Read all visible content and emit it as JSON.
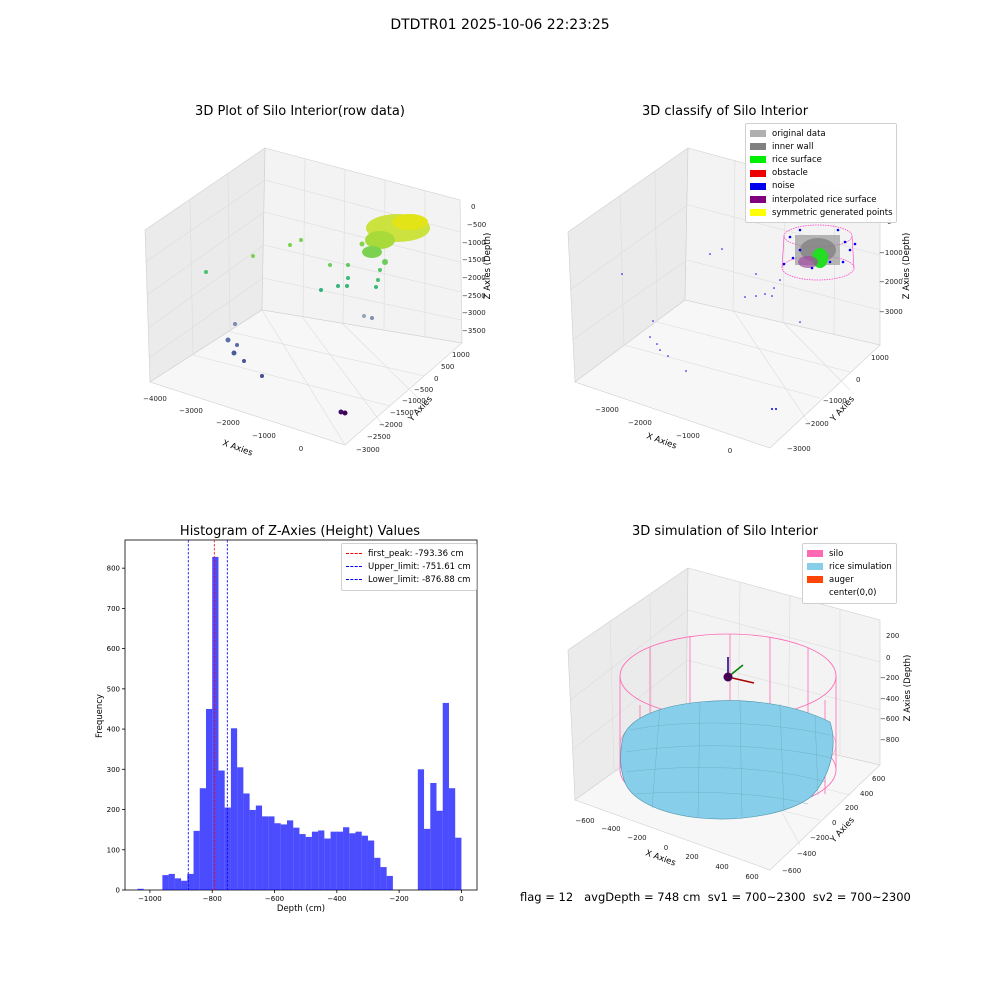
{
  "suptitle": "DTDTR01 2025-10-06 22:23:25",
  "panels": {
    "raw": {
      "title": "3D Plot of Silo Interior(row data)",
      "xlabel": "X Axies",
      "ylabel": "Y Axies",
      "zlabel": "Z Axies (Depth)",
      "xticks": [
        "−4000",
        "−3000",
        "−2000",
        "−1000",
        "0"
      ],
      "yticks": [
        "1000",
        "500",
        "0",
        "−500",
        "−1000",
        "−1500",
        "−2000",
        "−2500",
        "−3000"
      ],
      "zticks": [
        "0",
        "−500",
        "−1000",
        "−1500",
        "−2000",
        "−2500",
        "−3000",
        "−3500"
      ]
    },
    "classify": {
      "title": "3D classify of Silo Interior",
      "xlabel": "X Axies",
      "ylabel": "Y Axies",
      "zlabel": "Z Axies (Depth)",
      "xticks": [
        "−3000",
        "−2000",
        "−1000",
        "0"
      ],
      "yticks": [
        "1000",
        "0",
        "−1000",
        "−2000",
        "−3000"
      ],
      "zticks": [
        "0",
        "−1000",
        "−2000",
        "−3000"
      ],
      "legend": [
        {
          "label": "original data",
          "color": "#b0b0b0"
        },
        {
          "label": "inner wall",
          "color": "#808080"
        },
        {
          "label": "rice surface",
          "color": "#00ee00"
        },
        {
          "label": "obstacle",
          "color": "#ee0000"
        },
        {
          "label": "noise",
          "color": "#0000ee"
        },
        {
          "label": "interpolated rice surface",
          "color": "#800080"
        },
        {
          "label": "symmetric generated points",
          "color": "#ffff00"
        }
      ]
    },
    "simulation": {
      "title": "3D simulation of Silo Interior",
      "xlabel": "X Axies",
      "ylabel": "Y Axies",
      "zlabel": "Z Axies (Depth)",
      "xticks": [
        "−600",
        "−400",
        "−200",
        "0",
        "200",
        "400",
        "600"
      ],
      "yticks": [
        "600",
        "400",
        "200",
        "0",
        "−200",
        "−400",
        "−600"
      ],
      "zticks": [
        "200",
        "0",
        "−200",
        "−400",
        "−600",
        "−800"
      ],
      "legend": [
        {
          "label": "silo",
          "color": "#ff69b4"
        },
        {
          "label": "rice simulation",
          "color": "#87ceeb"
        },
        {
          "label": "auger",
          "color": "#ff4500"
        },
        {
          "label": "center(0,0)",
          "color": ""
        }
      ]
    }
  },
  "status_line": "flag = 12   avgDepth = 748 cm  sv1 = 700~2300  sv2 = 700~2300",
  "chart_data": {
    "type": "bar",
    "title": "Histogram of Z-Axies (Height) Values",
    "xlabel": "Depth (cm)",
    "ylabel": "Frequency",
    "xlim": [
      -1080,
      50
    ],
    "ylim": [
      0,
      870
    ],
    "bar_color": "#0000ff",
    "xticks": [
      -1000,
      -800,
      -600,
      -400,
      -200,
      0
    ],
    "xtick_labels": [
      "−1000",
      "−800",
      "−600",
      "−400",
      "−200",
      "0"
    ],
    "yticks": [
      0,
      100,
      200,
      300,
      400,
      500,
      600,
      700,
      800
    ],
    "yticks_labels": [
      "0",
      "100",
      "200",
      "300",
      "400",
      "500",
      "600",
      "700",
      "800"
    ],
    "bin_width": 20,
    "bin_starts": [
      -1040,
      -960,
      -940,
      -920,
      -900,
      -880,
      -860,
      -840,
      -820,
      -800,
      -780,
      -760,
      -740,
      -720,
      -700,
      -680,
      -660,
      -640,
      -620,
      -600,
      -580,
      -560,
      -540,
      -520,
      -500,
      -480,
      -460,
      -440,
      -420,
      -400,
      -380,
      -360,
      -340,
      -320,
      -300,
      -280,
      -260,
      -240,
      -220,
      -140,
      -120,
      -100,
      -80,
      -60,
      -40,
      -20
    ],
    "values": [
      3,
      37,
      40,
      29,
      23,
      40,
      147,
      253,
      450,
      828,
      297,
      205,
      402,
      305,
      240,
      199,
      210,
      183,
      183,
      166,
      163,
      173,
      155,
      139,
      132,
      145,
      148,
      128,
      145,
      145,
      156,
      141,
      145,
      135,
      123,
      80,
      57,
      35,
      0,
      300,
      152,
      266,
      197,
      465,
      253,
      130
    ],
    "lines": [
      {
        "label": "first_peak: -793.36 cm",
        "x": -793.36,
        "color": "#ff0000"
      },
      {
        "label": "Upper_limit: -751.61 cm",
        "x": -751.61,
        "color": "#0000ff"
      },
      {
        "label": "Lower_limit: -876.88 cm",
        "x": -876.88,
        "color": "#0000ff"
      }
    ]
  }
}
